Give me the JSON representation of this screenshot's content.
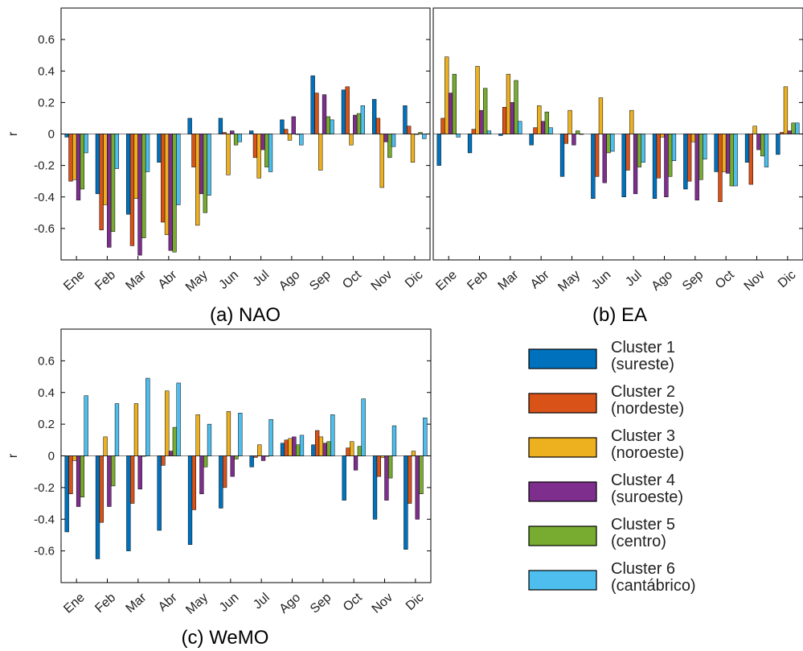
{
  "figure": {
    "captions": [
      "(a) NAO",
      "(b) EA",
      "(c) WeMO"
    ]
  },
  "legend": {
    "entries": [
      {
        "line1": "Cluster 1",
        "line2": "(sureste)",
        "color": "#0072BD"
      },
      {
        "line1": "Cluster 2",
        "line2": "(nordeste)",
        "color": "#D95319"
      },
      {
        "line1": "Cluster 3",
        "line2": "(noroeste)",
        "color": "#EDB120"
      },
      {
        "line1": "Cluster 4",
        "line2": "(suroeste)",
        "color": "#7E2F8E"
      },
      {
        "line1": "Cluster 5",
        "line2": "(centro)",
        "color": "#77AC30"
      },
      {
        "line1": "Cluster 6",
        "line2": "(cantábrico)",
        "color": "#4DBEEE"
      }
    ]
  },
  "chart_data": [
    {
      "type": "bar",
      "title": "(a) NAO",
      "ylabel": "r",
      "ylim": [
        -0.8,
        0.8
      ],
      "yticks": [
        -0.6,
        -0.4,
        -0.2,
        0,
        0.2,
        0.4,
        0.6
      ],
      "categories": [
        "Ene",
        "Feb",
        "Mar",
        "Abr",
        "May",
        "Jun",
        "Jul",
        "Ago",
        "Sep",
        "Oct",
        "Nov",
        "Dic"
      ],
      "series": [
        {
          "name": "Cluster 1 (sureste)",
          "values": [
            -0.02,
            -0.38,
            -0.51,
            -0.18,
            0.1,
            0.1,
            0.02,
            0.09,
            0.37,
            0.28,
            0.22,
            0.18
          ]
        },
        {
          "name": "Cluster 2 (nordeste)",
          "values": [
            -0.3,
            -0.61,
            -0.71,
            -0.56,
            -0.21,
            0.01,
            -0.15,
            0.03,
            0.26,
            0.3,
            0.1,
            0.05
          ]
        },
        {
          "name": "Cluster 3 (noroeste)",
          "values": [
            -0.29,
            -0.45,
            -0.41,
            -0.64,
            -0.58,
            -0.26,
            -0.28,
            -0.04,
            -0.23,
            -0.07,
            -0.34,
            -0.18
          ]
        },
        {
          "name": "Cluster 4 (suroeste)",
          "values": [
            -0.42,
            -0.72,
            -0.77,
            -0.74,
            -0.38,
            0.02,
            -0.1,
            0.11,
            0.25,
            0.12,
            -0.05,
            0.0
          ]
        },
        {
          "name": "Cluster 5 (centro)",
          "values": [
            -0.35,
            -0.62,
            -0.66,
            -0.75,
            -0.5,
            -0.07,
            -0.21,
            0.0,
            0.11,
            0.13,
            -0.15,
            0.01
          ]
        },
        {
          "name": "Cluster 6 (cantábrico)",
          "values": [
            -0.12,
            -0.22,
            -0.24,
            -0.45,
            -0.39,
            -0.05,
            -0.24,
            -0.07,
            0.09,
            0.18,
            -0.08,
            -0.03
          ]
        }
      ]
    },
    {
      "type": "bar",
      "title": "(b) EA",
      "ylabel": "",
      "ylim": [
        -0.8,
        0.8
      ],
      "categories": [
        "Ene",
        "Feb",
        "Mar",
        "Abr",
        "May",
        "Jun",
        "Jul",
        "Ago",
        "Sep",
        "Oct",
        "Nov",
        "Dic"
      ],
      "series": [
        {
          "name": "Cluster 1 (sureste)",
          "values": [
            -0.2,
            -0.12,
            -0.01,
            -0.07,
            -0.27,
            -0.41,
            -0.4,
            -0.41,
            -0.35,
            -0.24,
            -0.18,
            -0.13
          ]
        },
        {
          "name": "Cluster 2 (nordeste)",
          "values": [
            0.1,
            0.03,
            0.17,
            0.04,
            -0.06,
            -0.27,
            -0.23,
            -0.28,
            -0.3,
            -0.43,
            -0.32,
            0.01
          ]
        },
        {
          "name": "Cluster 3 (noroeste)",
          "values": [
            0.49,
            0.43,
            0.38,
            0.18,
            0.15,
            0.23,
            0.15,
            -0.02,
            -0.05,
            -0.24,
            0.05,
            0.3
          ]
        },
        {
          "name": "Cluster 4 (suroeste)",
          "values": [
            0.26,
            0.15,
            0.2,
            0.08,
            -0.07,
            -0.31,
            -0.38,
            -0.4,
            -0.42,
            -0.25,
            -0.1,
            0.02
          ]
        },
        {
          "name": "Cluster 5 (centro)",
          "values": [
            0.38,
            0.29,
            0.34,
            0.14,
            0.02,
            -0.12,
            -0.21,
            -0.27,
            -0.29,
            -0.33,
            -0.14,
            0.07
          ]
        },
        {
          "name": "Cluster 6 (cantábrico)",
          "values": [
            -0.02,
            0.02,
            0.08,
            0.04,
            0.0,
            -0.11,
            -0.18,
            -0.17,
            -0.16,
            -0.33,
            -0.21,
            0.07
          ]
        }
      ]
    },
    {
      "type": "bar",
      "title": "(c) WeMO",
      "ylabel": "r",
      "ylim": [
        -0.8,
        0.8
      ],
      "yticks": [
        -0.6,
        -0.4,
        -0.2,
        0,
        0.2,
        0.4,
        0.6
      ],
      "categories": [
        "Ene",
        "Feb",
        "Mar",
        "Abr",
        "May",
        "Jun",
        "Jul",
        "Ago",
        "Sep",
        "Oct",
        "Nov",
        "Dic"
      ],
      "series": [
        {
          "name": "Cluster 1 (sureste)",
          "values": [
            -0.48,
            -0.65,
            -0.6,
            -0.47,
            -0.56,
            -0.33,
            -0.07,
            0.08,
            0.07,
            -0.28,
            -0.4,
            -0.59
          ]
        },
        {
          "name": "Cluster 2 (nordeste)",
          "values": [
            -0.24,
            -0.42,
            -0.3,
            -0.06,
            -0.34,
            -0.2,
            -0.01,
            0.1,
            0.16,
            0.05,
            -0.13,
            -0.3
          ]
        },
        {
          "name": "Cluster 3 (noroeste)",
          "values": [
            -0.03,
            0.12,
            0.33,
            0.41,
            0.26,
            0.28,
            0.07,
            0.11,
            0.12,
            0.09,
            -0.01,
            0.03
          ]
        },
        {
          "name": "Cluster 4 (suroeste)",
          "values": [
            -0.32,
            -0.32,
            -0.21,
            0.03,
            -0.24,
            -0.13,
            -0.03,
            0.12,
            0.08,
            -0.09,
            -0.28,
            -0.4
          ]
        },
        {
          "name": "Cluster 5 (centro)",
          "values": [
            -0.26,
            -0.19,
            0.0,
            0.18,
            -0.07,
            -0.02,
            0.0,
            0.07,
            0.09,
            0.06,
            -0.14,
            -0.24
          ]
        },
        {
          "name": "Cluster 6 (cantábrico)",
          "values": [
            0.38,
            0.33,
            0.49,
            0.46,
            0.2,
            0.27,
            0.23,
            0.13,
            0.26,
            0.36,
            0.19,
            0.24
          ]
        }
      ]
    }
  ]
}
